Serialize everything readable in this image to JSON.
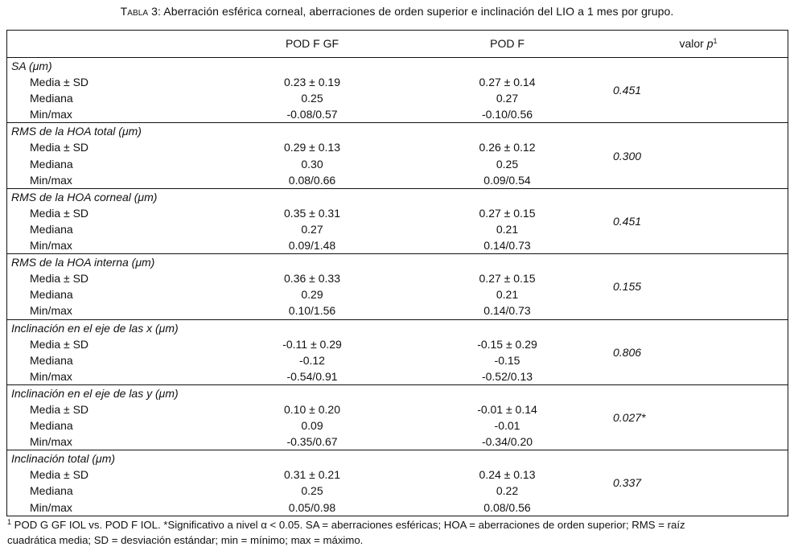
{
  "caption": {
    "label": "Tabla 3:",
    "text": " Aberración esférica corneal, aberraciones de orden superior e inclinación del LIO a 1 mes por grupo."
  },
  "header": {
    "col_a": "POD F GF",
    "col_b": "POD F",
    "col_p": "valor ",
    "col_p_italic": "p",
    "col_p_sup": "1"
  },
  "groups": [
    {
      "title": "SA (μm)",
      "rows": [
        {
          "label": "Media ± SD",
          "a": "0.23 ± 0.19",
          "b": "0.27 ± 0.14"
        },
        {
          "label": "Mediana",
          "a": "0.25",
          "b": "0.27"
        },
        {
          "label": "Min/max",
          "a": "-0.08/0.57",
          "b": "-0.10/0.56"
        }
      ],
      "p": "0.451"
    },
    {
      "title": "RMS de la HOA total (μm)",
      "rows": [
        {
          "label": "Media ± SD",
          "a": "0.29 ± 0.13",
          "b": "0.26 ± 0.12"
        },
        {
          "label": "Mediana",
          "a": "0.30",
          "b": "0.25"
        },
        {
          "label": "Min/max",
          "a": "0.08/0.66",
          "b": "0.09/0.54"
        }
      ],
      "p": "0.300"
    },
    {
      "title": "RMS de la HOA corneal (μm)",
      "rows": [
        {
          "label": "Media ± SD",
          "a": "0.35 ± 0.31",
          "b": "0.27 ± 0.15"
        },
        {
          "label": "Mediana",
          "a": "0.27",
          "b": "0.21"
        },
        {
          "label": "Min/max",
          "a": "0.09/1.48",
          "b": "0.14/0.73"
        }
      ],
      "p": "0.451"
    },
    {
      "title": "RMS de la HOA interna (μm)",
      "rows": [
        {
          "label": "Media ± SD",
          "a": "0.36 ± 0.33",
          "b": "0.27 ± 0.15"
        },
        {
          "label": "Mediana",
          "a": "0.29",
          "b": "0.21"
        },
        {
          "label": "Min/max",
          "a": "0.10/1.56",
          "b": "0.14/0.73"
        }
      ],
      "p": "0.155"
    },
    {
      "title": "Inclinación en el eje de las x (μm)",
      "rows": [
        {
          "label": "Media ± SD",
          "a": "-0.11 ± 0.29",
          "b": "-0.15 ± 0.29"
        },
        {
          "label": "Mediana",
          "a": "-0.12",
          "b": "-0.15"
        },
        {
          "label": "Min/max",
          "a": "-0.54/0.91",
          "b": "-0.52/0.13"
        }
      ],
      "p": "0.806"
    },
    {
      "title": "Inclinación en el eje de las y (μm)",
      "rows": [
        {
          "label": "Media ± SD",
          "a": "0.10 ± 0.20",
          "b": "-0.01 ± 0.14"
        },
        {
          "label": "Mediana",
          "a": "0.09",
          "b": "-0.01"
        },
        {
          "label": "Min/max",
          "a": "-0.35/0.67",
          "b": "-0.34/0.20"
        }
      ],
      "p": "0.027*"
    },
    {
      "title": "Inclinación total (μm)",
      "rows": [
        {
          "label": "Media ± SD",
          "a": "0.31 ± 0.21",
          "b": "0.24 ± 0.13"
        },
        {
          "label": "Mediana",
          "a": "0.25",
          "b": "0.22"
        },
        {
          "label": "Min/max",
          "a": "0.05/0.98",
          "b": "0.08/0.56"
        }
      ],
      "p": "0.337"
    }
  ],
  "footnote": {
    "sup": "1",
    "line1": " POD G GF IOL vs. POD F IOL. *Significativo a nivel α < 0.05. SA = aberraciones esféricas; HOA = aberraciones de orden superior; RMS = raíz",
    "line2": "cuadrática media; SD = desviación estándar; min = mínimo; max = máximo."
  }
}
